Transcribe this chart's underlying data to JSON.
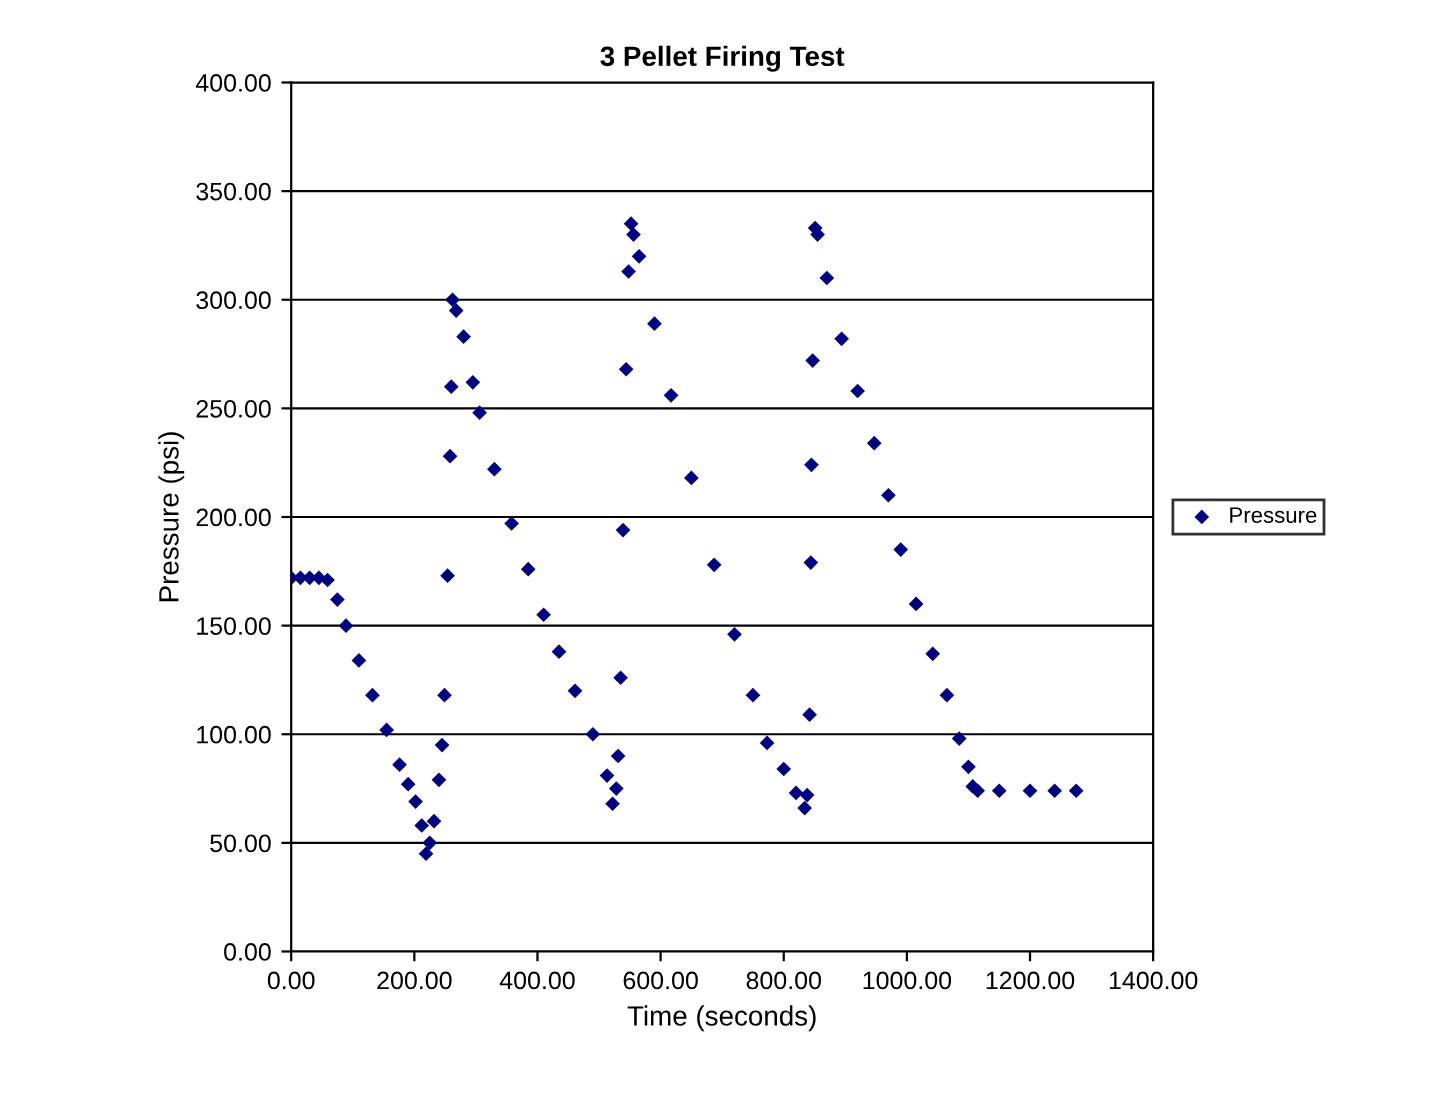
{
  "chart_data": {
    "type": "scatter",
    "title": "3 Pellet Firing Test",
    "xlabel": "Time (seconds)",
    "ylabel": "Pressure (psi)",
    "series": [
      {
        "name": "Pressure",
        "color": "#000080",
        "x": [
          0,
          15,
          30,
          45,
          59,
          75,
          89,
          110,
          132,
          155,
          176,
          190,
          202,
          212,
          219,
          225,
          232,
          240,
          245,
          249,
          254,
          258,
          260,
          262,
          268,
          280,
          295,
          306,
          330,
          358,
          385,
          410,
          435,
          461,
          490,
          513,
          522,
          528,
          531,
          535,
          539,
          544,
          548,
          552,
          556,
          565,
          590,
          617,
          650,
          687,
          720,
          750,
          773,
          800,
          820,
          834,
          838,
          842,
          844,
          845,
          847,
          851,
          855,
          870,
          894,
          920,
          947,
          970,
          990,
          1015,
          1042,
          1065,
          1085,
          1100,
          1107,
          1115,
          1150,
          1200,
          1240,
          1275
        ],
        "values": [
          172,
          172,
          172,
          172,
          171,
          162,
          150,
          134,
          118,
          102,
          86,
          77,
          69,
          58,
          45,
          50,
          60,
          79,
          95,
          118,
          173,
          228,
          260,
          300,
          295,
          283,
          262,
          248,
          222,
          197,
          176,
          155,
          138,
          120,
          100,
          81,
          68,
          75,
          90,
          126,
          194,
          268,
          313,
          335,
          330,
          320,
          289,
          256,
          218,
          178,
          146,
          118,
          96,
          84,
          73,
          66,
          72,
          109,
          179,
          224,
          272,
          333,
          330,
          310,
          282,
          258,
          234,
          210,
          185,
          160,
          137,
          118,
          98,
          85,
          76,
          74,
          74,
          74,
          74,
          74
        ]
      }
    ],
    "xlim": [
      0,
      1400
    ],
    "ylim": [
      0,
      400
    ],
    "xticks": [
      {
        "value": 0,
        "label": "0.00"
      },
      {
        "value": 200,
        "label": "200.00"
      },
      {
        "value": 400,
        "label": "400.00"
      },
      {
        "value": 600,
        "label": "600.00"
      },
      {
        "value": 800,
        "label": "800.00"
      },
      {
        "value": 1000,
        "label": "1000.00"
      },
      {
        "value": 1200,
        "label": "1200.00"
      },
      {
        "value": 1400,
        "label": "1400.00"
      }
    ],
    "yticks": [
      {
        "value": 0,
        "label": "0.00"
      },
      {
        "value": 50,
        "label": "50.00"
      },
      {
        "value": 100,
        "label": "100.00"
      },
      {
        "value": 150,
        "label": "150.00"
      },
      {
        "value": 200,
        "label": "200.00"
      },
      {
        "value": 250,
        "label": "250.00"
      },
      {
        "value": 300,
        "label": "300.00"
      },
      {
        "value": 350,
        "label": "350.00"
      },
      {
        "value": 400,
        "label": "400.00"
      }
    ],
    "grid": "y",
    "legend": "right",
    "marker": "diamond"
  }
}
